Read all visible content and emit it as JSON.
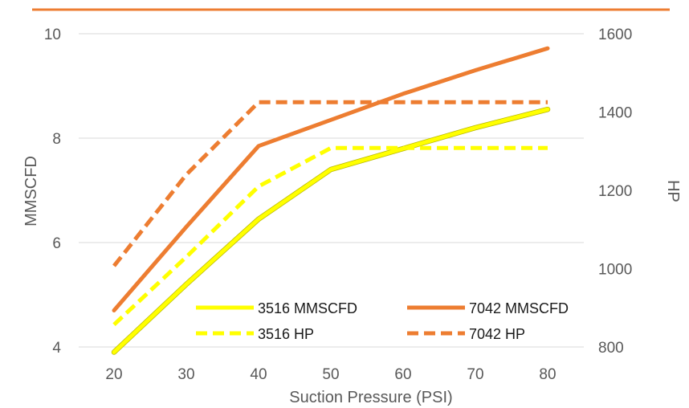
{
  "chart_data": {
    "type": "line",
    "x": [
      20,
      30,
      40,
      50,
      60,
      70,
      80
    ],
    "xlabel": "Suction Pressure (PSI)",
    "ylabel": "MMSCFD",
    "y2label": "HP",
    "xlim": [
      20,
      80
    ],
    "ylim": [
      4,
      10
    ],
    "y2lim": [
      800,
      1600
    ],
    "x_ticks": [
      "20",
      "30",
      "40",
      "50",
      "60",
      "70",
      "80"
    ],
    "y_ticks": [
      "4",
      "6",
      "8",
      "10"
    ],
    "y2_ticks": [
      "800",
      "1000",
      "1200",
      "1400",
      "1600"
    ],
    "grid": "horizontal",
    "legend": "bottom-right inside plot",
    "top_rule_color": "#ED7D31",
    "series": [
      {
        "name": "3516 MMSCFD",
        "axis": "left",
        "style": "solid",
        "color": "#FFFF00",
        "values": [
          3.9,
          5.2,
          6.45,
          7.4,
          7.8,
          8.2,
          8.55
        ]
      },
      {
        "name": "7042 MMSCFD",
        "axis": "left",
        "style": "solid",
        "color": "#ED7D31",
        "values": [
          4.7,
          6.3,
          7.85,
          8.35,
          8.85,
          9.3,
          9.72
        ]
      },
      {
        "name": "3516 HP",
        "axis": "right",
        "style": "dashed",
        "color": "#FFFF00",
        "values": [
          857,
          1030,
          1210,
          1308,
          1308,
          1308,
          1308
        ]
      },
      {
        "name": "7042 HP",
        "axis": "right",
        "style": "dashed",
        "color": "#ED7D31",
        "values": [
          1007,
          1240,
          1425,
          1425,
          1425,
          1425,
          1425
        ]
      }
    ]
  }
}
